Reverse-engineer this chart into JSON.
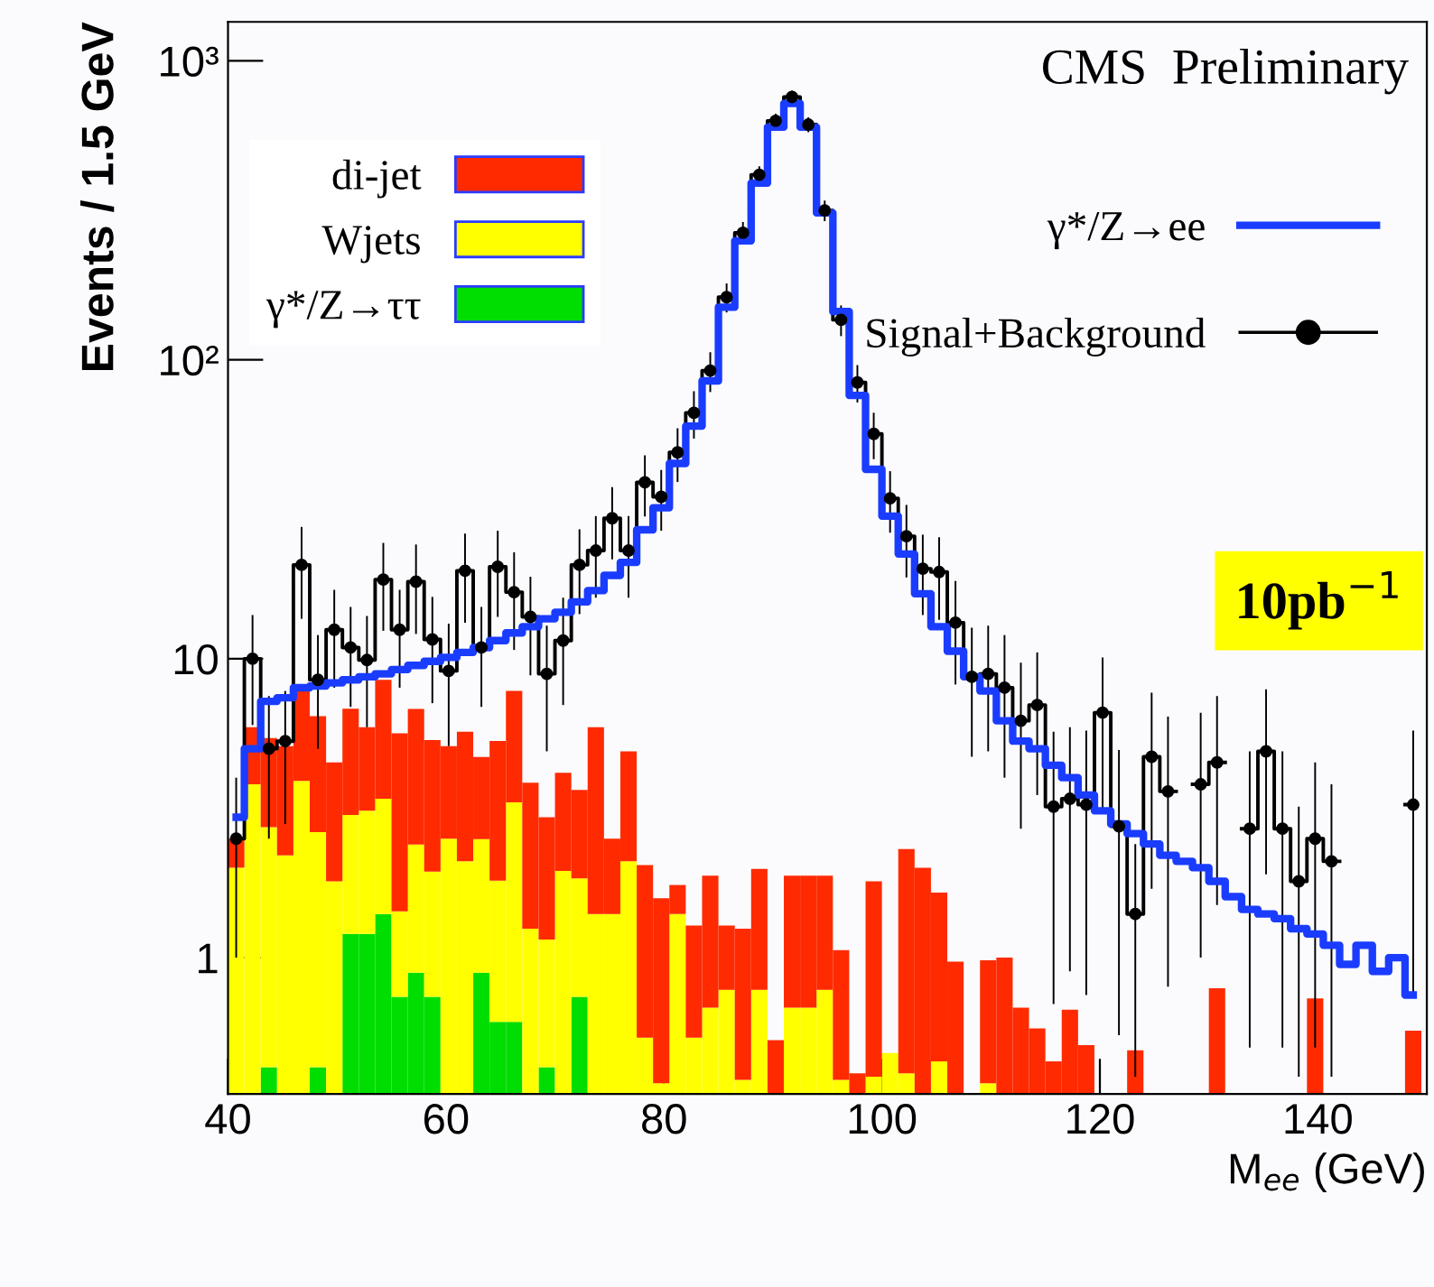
{
  "chart_data": {
    "type": "bar",
    "xlabel": "M$_{ee}$ (GeV)",
    "ylabel": "Events / 1.5 GeV",
    "annotations": [
      "CMS  Preliminary",
      "10pb$^{−1}$"
    ],
    "log": "y",
    "stacked": true,
    "legend": "top",
    "xlim": [
      40,
      150
    ],
    "xticks": [
      40,
      60,
      80,
      100,
      120,
      140
    ],
    "ylim": [
      0.35,
      1350
    ],
    "yticks": [
      {
        "value": 1,
        "label": "1"
      },
      {
        "value": 10,
        "label": "10"
      },
      {
        "value": 100,
        "label": "10²"
      },
      {
        "value": 1000,
        "label": "10³"
      }
    ],
    "x": [
      40.75,
      42.25,
      43.75,
      45.25,
      46.75,
      48.25,
      49.75,
      51.25,
      52.75,
      54.25,
      55.75,
      57.25,
      58.75,
      60.25,
      61.75,
      63.25,
      64.75,
      66.25,
      67.75,
      69.25,
      70.75,
      72.25,
      73.75,
      75.25,
      76.75,
      78.25,
      79.75,
      81.25,
      82.75,
      84.25,
      85.75,
      87.25,
      88.75,
      90.25,
      91.75,
      93.25,
      94.75,
      96.25,
      97.75,
      99.25,
      100.75,
      102.25,
      103.75,
      105.25,
      106.75,
      108.25,
      109.75,
      111.25,
      112.75,
      114.25,
      115.75,
      117.25,
      118.75,
      120.25,
      121.75,
      123.25,
      124.75,
      126.25,
      127.75,
      129.25,
      130.75,
      132.25,
      133.75,
      135.25,
      136.75,
      138.25,
      139.75,
      141.25,
      142.75,
      144.25,
      145.75,
      147.25,
      148.75
    ],
    "series": [
      {
        "name": "γ*/Z→ττ",
        "color": "#00dd00",
        "values": [
          null,
          null,
          0.43,
          null,
          null,
          0.43,
          null,
          1.2,
          1.2,
          1.4,
          0.74,
          0.89,
          0.74,
          null,
          null,
          0.89,
          0.61,
          0.61,
          null,
          0.43,
          null,
          0.74,
          null,
          null,
          null,
          null,
          null,
          null,
          null,
          null,
          null,
          null,
          null,
          null,
          null,
          null,
          null,
          null,
          null,
          null,
          null,
          null,
          null,
          null,
          null,
          null,
          null,
          null,
          null,
          null,
          null,
          null,
          null,
          null,
          null,
          null,
          null,
          null,
          null,
          null,
          null,
          null,
          null,
          null,
          null,
          null,
          null,
          null,
          null,
          null,
          null,
          null,
          null
        ]
      },
      {
        "name": "Wjets",
        "color": "#ffff00",
        "values": [
          2.0,
          3.8,
          2.3,
          2.2,
          3.9,
          2.2,
          1.8,
          1.8,
          1.9,
          2.0,
          0.69,
          1.5,
          1.2,
          2.5,
          2.1,
          1.6,
          1.2,
          2.7,
          1.25,
          0.72,
          1.95,
          1.1,
          1.4,
          1.4,
          2.1,
          0.54,
          0.38,
          1.4,
          0.54,
          0.68,
          0.78,
          0.39,
          0.78,
          null,
          0.68,
          0.68,
          0.78,
          0.39,
          null,
          0.4,
          0.48,
          0.41,
          null,
          0.45,
          null,
          null,
          0.38,
          null,
          null,
          null,
          null,
          null,
          null,
          null,
          null,
          null,
          null,
          null,
          null,
          null,
          null,
          null,
          null,
          null,
          null,
          null,
          null,
          null,
          null,
          null,
          null,
          null,
          null
        ]
      },
      {
        "name": "di-jet",
        "color": "#ff2a00",
        "values": [
          0.5,
          2.1,
          2.7,
          2.9,
          3.9,
          3.8,
          2.7,
          3.8,
          2.8,
          5.1,
          4.2,
          4.4,
          3.4,
          2.6,
          3.6,
          2.2,
          3.5,
          4.5,
          2.6,
          1.8,
          2.2,
          1.8,
          4.5,
          1.1,
          2.8,
          1.5,
          1.2,
          0.35,
          0.74,
          1.2,
          0.5,
          0.86,
          1.2,
          0.53,
          1.2,
          1.2,
          1.1,
          0.67,
          0.41,
          1.4,
          null,
          1.9,
          2.0,
          1.2,
          0.97,
          null,
          0.6,
          1.0,
          0.68,
          0.58,
          0.45,
          0.67,
          0.51,
          null,
          null,
          0.49,
          null,
          null,
          null,
          null,
          0.79,
          null,
          null,
          null,
          null,
          null,
          0.73,
          null,
          null,
          null,
          null,
          null,
          0.57
        ]
      },
      {
        "name": "γ*/Z→ee",
        "type": "step",
        "color": "#1a3cff",
        "x": [
          40.75,
          42.25,
          43.75,
          45.25,
          46.75,
          48.25,
          49.75,
          51.25,
          52.75,
          54.25,
          55.75,
          57.25,
          58.75,
          60.25,
          61.75,
          63.25,
          64.75,
          66.25,
          67.75,
          69.25,
          70.75,
          72.25,
          73.75,
          75.25,
          76.75,
          78.25,
          79.75,
          81.25,
          82.75,
          84.25,
          85.75,
          87.25,
          88.75,
          90.25,
          91.75,
          93.25,
          94.75,
          96.25,
          97.75,
          99.25,
          100.75,
          102.25,
          103.75,
          105.25,
          106.75,
          108.25,
          109.75,
          111.25,
          112.75,
          114.25,
          115.75,
          117.25,
          118.75,
          120.25,
          121.75,
          123.25,
          124.75,
          126.25,
          127.75,
          129.25,
          130.75,
          132.25,
          133.75,
          135.25,
          136.75,
          138.25,
          139.75,
          141.25,
          142.75,
          144.25,
          145.75,
          147.25,
          148.75
        ],
        "values": [
          2.95,
          5.0,
          7.2,
          7.4,
          8.0,
          8.1,
          8.3,
          8.5,
          8.7,
          8.9,
          9.2,
          9.5,
          9.8,
          10.1,
          10.5,
          10.9,
          11.5,
          12.2,
          12.8,
          13.6,
          14.3,
          15.5,
          16.9,
          19,
          21,
          27,
          32,
          45,
          60,
          85,
          150,
          250,
          390,
          600,
          720,
          600,
          310,
          145,
          76,
          43,
          30,
          22.4,
          16.5,
          12.8,
          10.6,
          8.7,
          7.8,
          6.2,
          5.3,
          5.0,
          4.4,
          4.0,
          3.5,
          3.1,
          2.8,
          2.6,
          2.4,
          2.2,
          2.1,
          2.0,
          1.8,
          1.6,
          1.45,
          1.4,
          1.35,
          1.25,
          1.2,
          1.1,
          0.95,
          1.1,
          0.9,
          1.0,
          0.75
        ]
      },
      {
        "name": "Signal+Background",
        "type": "step",
        "color": "#000000",
        "marker": "circle",
        "x": [
          40.75,
          42.25,
          43.75,
          45.25,
          46.75,
          48.25,
          49.75,
          51.25,
          52.75,
          54.25,
          55.75,
          57.25,
          58.75,
          60.25,
          61.75,
          63.25,
          64.75,
          66.25,
          67.75,
          69.25,
          70.75,
          72.25,
          73.75,
          75.25,
          76.75,
          78.25,
          79.75,
          81.25,
          82.75,
          84.25,
          85.75,
          87.25,
          88.75,
          90.25,
          91.75,
          93.25,
          94.75,
          96.25,
          97.75,
          99.25,
          100.75,
          102.25,
          103.75,
          105.25,
          106.75,
          108.25,
          109.75,
          111.25,
          112.75,
          114.25,
          115.75,
          117.25,
          118.75,
          120.25,
          121.75,
          123.25,
          124.75,
          126.25,
          127.75,
          129.25,
          130.75,
          132.25,
          133.75,
          135.25,
          136.75,
          138.25,
          139.75,
          141.25,
          142.75,
          144.25,
          145.75,
          147.25,
          148.75
        ],
        "values": [
          2.5,
          10,
          5.0,
          5.3,
          20.6,
          8.5,
          12.5,
          10.9,
          9.9,
          18.4,
          12.5,
          18.1,
          11.6,
          9.1,
          19.7,
          10.9,
          20.3,
          16.7,
          13.8,
          8.9,
          11.5,
          20.6,
          23,
          29.5,
          23,
          38.9,
          34.8,
          49,
          66.5,
          92,
          162,
          266,
          416,
          630,
          757,
          612,
          316,
          136,
          84,
          56.5,
          34.4,
          25.7,
          20,
          19.5,
          13.2,
          8.7,
          8.9,
          8.0,
          6.2,
          7.0,
          3.2,
          3.4,
          3.25,
          6.6,
          2.75,
          1.4,
          4.7,
          3.6,
          null,
          3.8,
          4.5,
          null,
          2.7,
          4.9,
          2.7,
          1.8,
          2.5,
          2.1,
          null,
          null,
          null,
          null,
          3.25
        ],
        "errors": [
          1.5,
          4,
          2.5,
          2.5,
          7,
          3.5,
          4.5,
          4,
          4,
          6,
          4.5,
          6,
          4.5,
          4,
          6.5,
          4,
          6.5,
          6,
          5,
          4,
          4.5,
          6.5,
          7,
          8,
          7,
          9,
          8,
          10,
          12,
          14,
          18,
          23,
          28,
          35,
          38,
          35,
          25,
          16,
          12,
          10,
          8,
          7,
          6,
          6,
          5,
          4,
          4,
          4,
          3.5,
          3.5,
          2.5,
          2.5,
          2.5,
          3.5,
          2.2,
          1.0,
          3,
          2.8,
          null,
          2.8,
          3,
          null,
          2.2,
          3,
          2.2,
          1.4,
          2,
          1.7,
          null,
          null,
          null,
          null,
          2.5
        ]
      }
    ]
  }
}
